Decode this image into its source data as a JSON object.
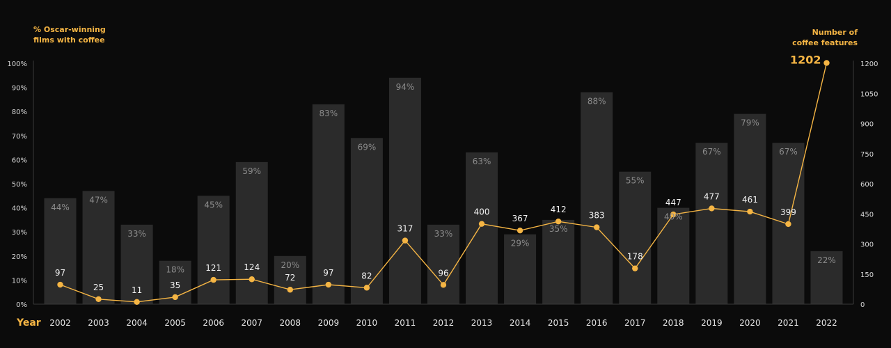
{
  "chart_data": {
    "type": "bar+line",
    "left_axis_title": [
      "% Oscar-winning",
      "films with coffee"
    ],
    "right_axis_title": [
      "Number of",
      "coffee features"
    ],
    "x_axis_label": "Year",
    "categories": [
      "2002",
      "2003",
      "2004",
      "2005",
      "2006",
      "2007",
      "2008",
      "2009",
      "2010",
      "2011",
      "2012",
      "2013",
      "2014",
      "2015",
      "2016",
      "2017",
      "2018",
      "2019",
      "2020",
      "2021",
      "2022"
    ],
    "series": [
      {
        "name": "% Oscar-winning films with coffee",
        "type": "bar",
        "unit": "%",
        "values": [
          44,
          47,
          33,
          18,
          45,
          59,
          20,
          83,
          69,
          94,
          33,
          63,
          29,
          35,
          88,
          55,
          40,
          67,
          79,
          67,
          22
        ]
      },
      {
        "name": "Number of coffee features",
        "type": "line",
        "values": [
          97,
          25,
          11,
          35,
          121,
          124,
          72,
          97,
          82,
          317,
          96,
          400,
          367,
          412,
          383,
          178,
          447,
          477,
          461,
          399,
          1202
        ]
      }
    ],
    "left_ylim": [
      0,
      100
    ],
    "left_ticks": [
      "0%",
      "10%",
      "20%",
      "30%",
      "40%",
      "50%",
      "60%",
      "70%",
      "80%",
      "90%",
      "100%"
    ],
    "right_ylim": [
      0,
      1200
    ],
    "right_ticks": [
      "0",
      "150",
      "300",
      "450",
      "600",
      "750",
      "900",
      "1050",
      "1200"
    ],
    "colors": {
      "bar": "#2b2b2b",
      "line": "#f5b544",
      "accent": "#f5b544",
      "background": "#0b0b0b"
    }
  }
}
